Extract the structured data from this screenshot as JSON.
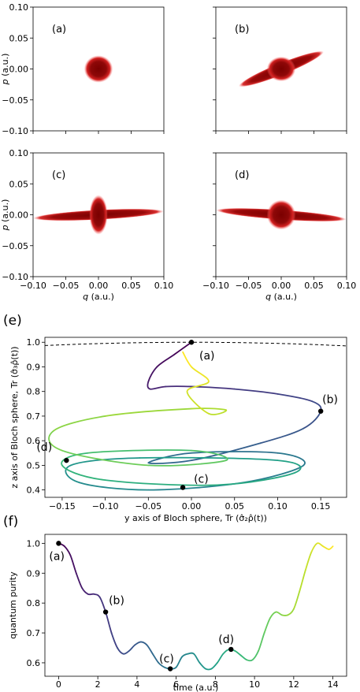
{
  "figure": {
    "panel_labels": {
      "e": "(e)",
      "f": "(f)"
    }
  },
  "chart_data": [
    {
      "type": "heatmap",
      "panel": "(a)",
      "title": "",
      "xlabel": "",
      "ylabel": "p (a.u.)",
      "xlim": [
        -0.1,
        0.1
      ],
      "ylim": [
        -0.1,
        0.1
      ],
      "x_ticks": [],
      "y_ticks": [
        "−0.10",
        "−0.05",
        "0.00",
        "0.05",
        "0.10"
      ],
      "description_shape": "round blob",
      "blob": {
        "center": [
          0,
          0
        ],
        "rx": 0.022,
        "ry": 0.022,
        "angle_deg": 0
      },
      "streak": null,
      "color": "#8b0000"
    },
    {
      "type": "heatmap",
      "panel": "(b)",
      "xlim": [
        -0.1,
        0.1
      ],
      "ylim": [
        -0.1,
        0.1
      ],
      "x_ticks": [],
      "y_ticks": [],
      "blob": {
        "center": [
          0,
          0
        ],
        "rx": 0.022,
        "ry": 0.02,
        "angle_deg": 0
      },
      "streak": {
        "center": [
          0,
          0
        ],
        "half_length": 0.07,
        "half_width": 0.006,
        "angle_deg": 22
      },
      "color": "#8b0000"
    },
    {
      "type": "heatmap",
      "panel": "(c)",
      "xlabel": "q (a.u.)",
      "ylabel": "p (a.u.)",
      "xlim": [
        -0.1,
        0.1
      ],
      "ylim": [
        -0.1,
        0.1
      ],
      "x_ticks": [
        "−0.10",
        "−0.05",
        "0.00",
        "0.05",
        "0.10"
      ],
      "y_ticks": [
        "−0.10",
        "−0.05",
        "0.00",
        "0.05",
        "0.10"
      ],
      "blob": {
        "center": [
          0,
          0
        ],
        "rx": 0.014,
        "ry": 0.032,
        "angle_deg": 0
      },
      "streak": {
        "center": [
          0,
          0
        ],
        "half_length": 0.1,
        "half_width": 0.005,
        "angle_deg": 3
      },
      "color": "#8b0000"
    },
    {
      "type": "heatmap",
      "panel": "(d)",
      "xlabel": "q (a.u.)",
      "xlim": [
        -0.1,
        0.1
      ],
      "ylim": [
        -0.1,
        0.1
      ],
      "x_ticks": [
        "−0.10",
        "−0.05",
        "0.00",
        "0.05",
        "0.10"
      ],
      "y_ticks": [],
      "blob": {
        "center": [
          0,
          0
        ],
        "rx": 0.022,
        "ry": 0.024,
        "angle_deg": 0
      },
      "streak": {
        "center": [
          0,
          0
        ],
        "half_length": 0.1,
        "half_width": 0.005,
        "angle_deg": -4
      },
      "color": "#8b0000"
    },
    {
      "type": "line",
      "panel": "(e)",
      "xlabel": "y axis of Bloch sphere, Tr (σ̂₂ρ̂(t))",
      "ylabel": "z axis of Bloch sphere, Tr (σ̂₃ρ̂(t))",
      "xlim": [
        -0.17,
        0.18
      ],
      "ylim": [
        0.37,
        1.02
      ],
      "x_ticks": [
        -0.15,
        -0.1,
        -0.05,
        0.0,
        0.05,
        0.1,
        0.15
      ],
      "x_tick_labels": [
        "−0.15",
        "−0.10",
        "−0.05",
        "0.00",
        "0.05",
        "0.10",
        "0.15"
      ],
      "y_ticks": [
        0.4,
        0.5,
        0.6,
        0.7,
        0.8,
        0.9,
        1.0
      ],
      "y_tick_labels": [
        "0.4",
        "0.5",
        "0.6",
        "0.7",
        "0.8",
        "0.9",
        "1.0"
      ],
      "colormap": "viridis (dark purple → yellow with time)",
      "boundary_dashed": {
        "y_at_x0": 1.0,
        "y_at_edges": 0.985
      },
      "trajectory": [
        [
          0.0,
          1.0
        ],
        [
          -0.02,
          0.95
        ],
        [
          -0.04,
          0.9
        ],
        [
          -0.05,
          0.84
        ],
        [
          -0.048,
          0.81
        ],
        [
          -0.03,
          0.82
        ],
        [
          0.0,
          0.82
        ],
        [
          0.05,
          0.81
        ],
        [
          0.1,
          0.79
        ],
        [
          0.14,
          0.76
        ],
        [
          0.15,
          0.72
        ],
        [
          0.13,
          0.65
        ],
        [
          0.08,
          0.59
        ],
        [
          0.0,
          0.52
        ],
        [
          -0.05,
          0.51
        ],
        [
          0.0,
          0.55
        ],
        [
          0.1,
          0.55
        ],
        [
          0.13,
          0.5
        ],
        [
          0.06,
          0.43
        ],
        [
          -0.05,
          0.4
        ],
        [
          -0.13,
          0.43
        ],
        [
          -0.14,
          0.5
        ],
        [
          -0.06,
          0.53
        ],
        [
          0.1,
          0.52
        ],
        [
          0.12,
          0.47
        ],
        [
          0.03,
          0.42
        ],
        [
          -0.1,
          0.44
        ],
        [
          -0.15,
          0.5
        ],
        [
          -0.12,
          0.55
        ],
        [
          0.0,
          0.56
        ],
        [
          0.04,
          0.52
        ],
        [
          -0.05,
          0.5
        ],
        [
          -0.15,
          0.56
        ],
        [
          -0.16,
          0.64
        ],
        [
          -0.1,
          0.7
        ],
        [
          0.0,
          0.73
        ],
        [
          0.04,
          0.725
        ],
        [
          0.02,
          0.71
        ],
        [
          -0.005,
          0.8
        ],
        [
          0.02,
          0.84
        ],
        [
          0.0,
          0.9
        ],
        [
          -0.01,
          0.96
        ]
      ],
      "markers": [
        {
          "label": "(a)",
          "x": 0.0,
          "y": 1.0
        },
        {
          "label": "(b)",
          "x": 0.15,
          "y": 0.72
        },
        {
          "label": "(c)",
          "x": -0.01,
          "y": 0.41
        },
        {
          "label": "(d)",
          "x": -0.145,
          "y": 0.52
        }
      ]
    },
    {
      "type": "line",
      "panel": "(f)",
      "xlabel": "time (a.u.)",
      "ylabel": "quantum purity",
      "xlim": [
        -0.7,
        14.7
      ],
      "ylim": [
        0.555,
        1.03
      ],
      "x_ticks": [
        0,
        2,
        4,
        6,
        8,
        10,
        12,
        14
      ],
      "x_tick_labels": [
        "0",
        "2",
        "4",
        "6",
        "8",
        "10",
        "12",
        "14"
      ],
      "y_ticks": [
        0.6,
        0.7,
        0.8,
        0.9,
        1.0
      ],
      "y_tick_labels": [
        "0.6",
        "0.7",
        "0.8",
        "0.9",
        "1.0"
      ],
      "colormap": "viridis (dark purple → yellow with time)",
      "x": [
        0,
        0.3,
        0.6,
        0.9,
        1.2,
        1.5,
        1.8,
        2.1,
        2.4,
        2.7,
        3.0,
        3.3,
        3.6,
        3.9,
        4.2,
        4.5,
        4.8,
        5.1,
        5.4,
        5.7,
        6.0,
        6.3,
        6.6,
        6.9,
        7.2,
        7.5,
        7.8,
        8.1,
        8.4,
        8.7,
        9.0,
        9.3,
        9.6,
        9.9,
        10.2,
        10.5,
        10.8,
        11.1,
        11.4,
        11.7,
        12.0,
        12.3,
        12.6,
        12.9,
        13.2,
        13.5,
        13.8,
        14.0
      ],
      "y": [
        1.0,
        0.99,
        0.96,
        0.9,
        0.85,
        0.83,
        0.83,
        0.82,
        0.77,
        0.7,
        0.65,
        0.63,
        0.64,
        0.66,
        0.67,
        0.66,
        0.63,
        0.6,
        0.585,
        0.58,
        0.585,
        0.62,
        0.63,
        0.63,
        0.6,
        0.58,
        0.58,
        0.6,
        0.63,
        0.645,
        0.64,
        0.625,
        0.61,
        0.61,
        0.64,
        0.7,
        0.75,
        0.77,
        0.76,
        0.76,
        0.78,
        0.84,
        0.91,
        0.97,
        1.0,
        0.99,
        0.98,
        0.99
      ],
      "markers": [
        {
          "label": "(a)",
          "x": 0.0,
          "y": 1.0
        },
        {
          "label": "(b)",
          "x": 2.4,
          "y": 0.77
        },
        {
          "label": "(c)",
          "x": 5.7,
          "y": 0.58
        },
        {
          "label": "(d)",
          "x": 8.8,
          "y": 0.645
        }
      ]
    }
  ]
}
